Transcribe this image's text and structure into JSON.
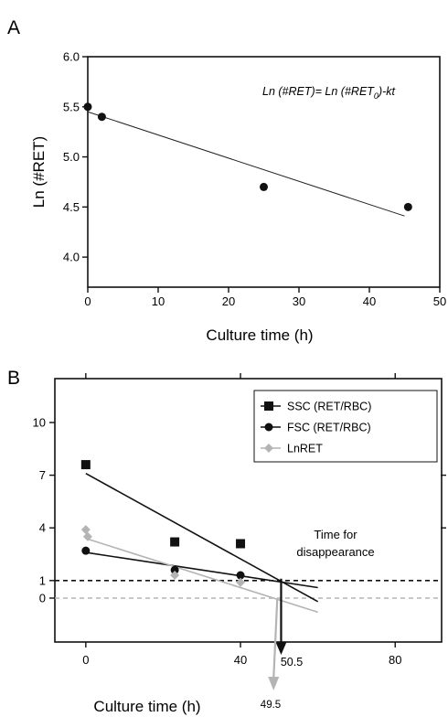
{
  "panels": {
    "a": {
      "letter": "A",
      "ylabel": "Ln (#RET)",
      "xlabel": "Culture time (h)",
      "equation": "Ln (#RET)= Ln (#RET",
      "equation_sub": "0",
      "equation_tail": ")-kt"
    },
    "b": {
      "letter": "B",
      "xlabel": "Culture time (h)",
      "annotation": "Time for",
      "annotation2": "disappearance",
      "arrow_label_black": "50.5",
      "arrow_label_gray": "49.5"
    }
  },
  "chart_data": [
    {
      "type": "scatter",
      "panel": "A",
      "xlabel": "Culture time (h)",
      "ylabel": "Ln (#RET)",
      "xlim": [
        0,
        50
      ],
      "ylim": [
        3.7,
        6.0
      ],
      "x_ticks": [
        "0",
        "10",
        "20",
        "30",
        "40",
        "50"
      ],
      "y_ticks": [
        "4.0",
        "4.5",
        "5.0",
        "5.5",
        "6.0"
      ],
      "points": [
        {
          "x": 0,
          "y": 5.5
        },
        {
          "x": 2,
          "y": 5.4
        },
        {
          "x": 25,
          "y": 4.7
        },
        {
          "x": 45.5,
          "y": 4.5
        }
      ],
      "fit_line": [
        {
          "x": 0,
          "y": 5.45
        },
        {
          "x": 45,
          "y": 4.41
        }
      ],
      "annotation": "Ln (#RET)= Ln (#RET0)-kt",
      "grid": false
    },
    {
      "type": "scatter",
      "panel": "B",
      "xlabel": "Culture time (h)",
      "xlim": [
        -8,
        92
      ],
      "ylim": [
        -2.5,
        12.5
      ],
      "x_ticks": [
        "0",
        "40",
        "80"
      ],
      "y_ticks": [
        "0",
        "1",
        "4",
        "7",
        "10"
      ],
      "legend_position": "top-right",
      "series": [
        {
          "name": "SSC (RET/RBC)",
          "color": "#111111",
          "marker": "square",
          "points": [
            {
              "x": 0,
              "y": 7.6
            },
            {
              "x": 23,
              "y": 3.2
            },
            {
              "x": 40,
              "y": 3.1
            }
          ],
          "fit_line": [
            {
              "x": 0,
              "y": 7.1
            },
            {
              "x": 60,
              "y": -0.2
            }
          ]
        },
        {
          "name": "FSC (RET/RBC)",
          "color": "#111111",
          "marker": "circle",
          "points": [
            {
              "x": 0,
              "y": 2.7
            },
            {
              "x": 23,
              "y": 1.6
            },
            {
              "x": 40,
              "y": 1.3
            }
          ],
          "fit_line": [
            {
              "x": 0,
              "y": 2.6
            },
            {
              "x": 60,
              "y": 0.6
            }
          ]
        },
        {
          "name": "LnRET",
          "color": "#b4b4b4",
          "marker": "diamond",
          "points": [
            {
              "x": 0,
              "y": 3.9
            },
            {
              "x": 0.5,
              "y": 3.5
            },
            {
              "x": 23,
              "y": 1.3
            },
            {
              "x": 40,
              "y": 0.9
            }
          ],
          "fit_line": [
            {
              "x": 0,
              "y": 3.4
            },
            {
              "x": 60,
              "y": -0.8
            }
          ]
        }
      ],
      "reference_lines": [
        {
          "y": 1,
          "color": "#111111",
          "style": "dashed"
        },
        {
          "y": 0,
          "color": "#b4b4b4",
          "style": "dashed"
        }
      ],
      "arrows": [
        {
          "x": 50.5,
          "label": "50.5",
          "color": "#111111"
        },
        {
          "x": 49.5,
          "label": "49.5",
          "color": "#b4b4b4"
        }
      ],
      "annotation": "Time for disappearance"
    }
  ]
}
